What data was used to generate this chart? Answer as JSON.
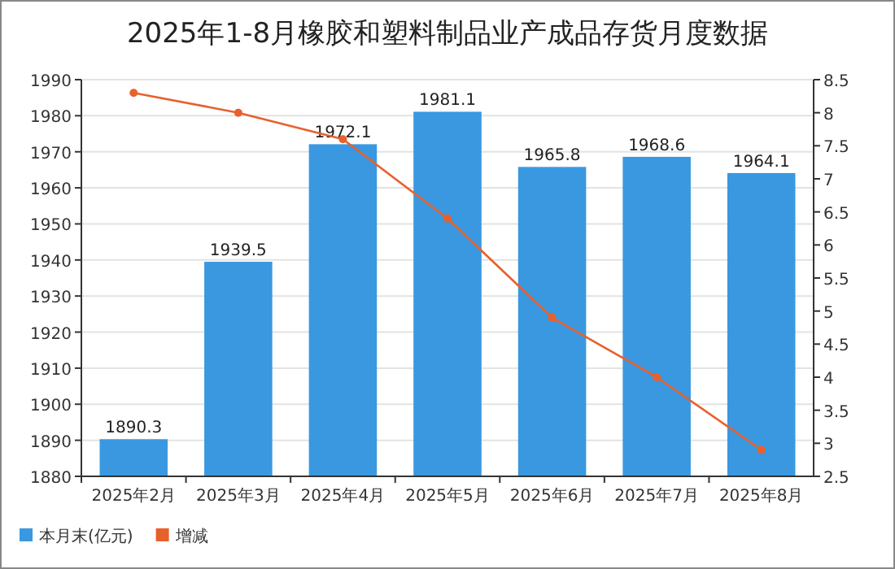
{
  "chart_data": {
    "type": "bar",
    "title": "2025年1-8月橡胶和塑料制品业产成品存货月度数据",
    "categories": [
      "2025年2月",
      "2025年3月",
      "2025年4月",
      "2025年5月",
      "2025年6月",
      "2025年7月",
      "2025年8月"
    ],
    "series": [
      {
        "name": "本月末(亿元)",
        "color": "#3a98e0",
        "values": [
          1890.3,
          1939.5,
          1972.1,
          1981.1,
          1965.8,
          1968.6,
          1964.1
        ],
        "value_labels": [
          "1890.3",
          "1939.5",
          "1972.1",
          "1981.1",
          "1965.8",
          "1968.6",
          "1964.1"
        ]
      },
      {
        "name": "增减",
        "type": "line",
        "axis": "y2",
        "color": "#e8602c",
        "marker": "circle",
        "values": [
          8.3,
          8.0,
          7.6,
          6.4,
          4.9,
          4.0,
          2.9
        ]
      }
    ],
    "ylim": [
      1880,
      1990
    ],
    "yticks": [
      1880,
      1890,
      1900,
      1910,
      1920,
      1930,
      1940,
      1950,
      1960,
      1970,
      1980,
      1990
    ],
    "y2lim": [
      2.5,
      8.5
    ],
    "y2ticks": [
      2.5,
      3,
      3.5,
      4,
      4.5,
      5,
      5.5,
      6,
      6.5,
      7,
      7.5,
      8,
      8.5
    ],
    "grid": "y",
    "legend": "bottom left"
  }
}
